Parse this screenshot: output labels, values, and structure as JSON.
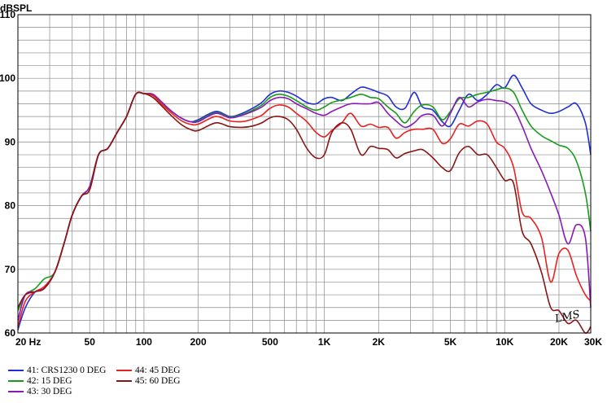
{
  "chart_data": {
    "type": "line",
    "ylabel": "dBSPL",
    "xscale": "log",
    "xlim": [
      20,
      30000
    ],
    "ylim": [
      60,
      110
    ],
    "grid": true,
    "x_tick_labels": [
      {
        "label": "20  Hz",
        "value": 20
      },
      {
        "label": "50",
        "value": 50
      },
      {
        "label": "100",
        "value": 100
      },
      {
        "label": "200",
        "value": 200
      },
      {
        "label": "500",
        "value": 500
      },
      {
        "label": "1K",
        "value": 1000
      },
      {
        "label": "2K",
        "value": 2000
      },
      {
        "label": "5K",
        "value": 5000
      },
      {
        "label": "10K",
        "value": 10000
      },
      {
        "label": "20K",
        "value": 20000
      },
      {
        "label": "30K",
        "value": 30000
      }
    ],
    "y_tick_labels": [
      {
        "label": "110",
        "value": 110
      },
      {
        "label": "100",
        "value": 100
      },
      {
        "label": "90",
        "value": 90
      },
      {
        "label": "80",
        "value": 80
      },
      {
        "label": "70",
        "value": 70
      },
      {
        "label": "60",
        "value": 60
      }
    ],
    "x": [
      20,
      22,
      25,
      28,
      32,
      36,
      40,
      45,
      50,
      56,
      63,
      71,
      80,
      90,
      100,
      112,
      125,
      140,
      160,
      180,
      200,
      250,
      300,
      350,
      400,
      450,
      500,
      560,
      630,
      700,
      800,
      900,
      1000,
      1100,
      1250,
      1400,
      1600,
      1800,
      2000,
      2250,
      2500,
      2800,
      3150,
      3500,
      4000,
      4500,
      5000,
      5600,
      6300,
      7100,
      8000,
      9000,
      10000,
      11200,
      12500,
      14000,
      16000,
      18000,
      20000,
      22400,
      25000,
      28000,
      30000
    ],
    "series": [
      {
        "name": "41: CRS1230 0 DEG",
        "color": "#1f2fd6",
        "values": [
          60.5,
          64,
          66.5,
          67,
          69.5,
          74,
          78.5,
          81.5,
          83,
          88,
          89,
          91.5,
          94,
          97.5,
          97.6,
          97.5,
          96.3,
          95,
          93.8,
          93.2,
          93.5,
          94.8,
          94,
          94.5,
          95.3,
          96.2,
          97.5,
          98,
          97.8,
          97.2,
          96.2,
          96,
          96.8,
          97,
          96.5,
          97.5,
          98.6,
          98.3,
          97.8,
          97.2,
          95.5,
          95.3,
          97.8,
          95.5,
          95,
          93.2,
          92.5,
          95,
          97.5,
          96.5,
          97.5,
          99,
          98.5,
          100.5,
          98.5,
          96,
          95,
          94.5,
          94.8,
          95.5,
          96,
          93,
          88
        ]
      },
      {
        "name": "42: 15 DEG",
        "color": "#169c1a",
        "values": [
          63.5,
          66,
          67,
          68.5,
          69.5,
          74,
          78.5,
          81.5,
          83,
          88,
          89,
          91.5,
          94,
          97.5,
          97.6,
          97.5,
          96.3,
          95,
          93.8,
          93.2,
          93.3,
          94.6,
          93.9,
          94.3,
          95,
          95.8,
          97,
          97.5,
          97.2,
          96.5,
          95.5,
          95,
          95.5,
          96.2,
          96.6,
          97,
          97.5,
          97,
          96.8,
          95.5,
          94.5,
          93,
          94.8,
          95.8,
          95.5,
          93.5,
          94.8,
          96.8,
          97,
          97.5,
          97.8,
          98.2,
          98.5,
          97.8,
          95,
          92.5,
          91,
          90.2,
          89.5,
          89,
          87,
          82,
          76
        ]
      },
      {
        "name": "43: 30 DEG",
        "color": "#8a1ab8",
        "values": [
          62,
          66,
          66.5,
          67,
          69.5,
          74,
          78.5,
          81.5,
          83,
          88,
          89,
          91.5,
          94,
          97.5,
          97.6,
          97.5,
          96.3,
          95,
          93.8,
          93.2,
          93.2,
          94.5,
          93.8,
          94.2,
          94.8,
          95.5,
          96.5,
          97,
          96.8,
          96,
          95.2,
          94.5,
          94.2,
          94.8,
          95.5,
          96,
          96,
          96,
          96.2,
          94.5,
          93.3,
          92.3,
          93,
          94.2,
          94.2,
          92.5,
          94.5,
          97,
          95.5,
          96.3,
          96.7,
          96.5,
          96.3,
          95.3,
          92.5,
          89,
          85.5,
          82,
          78.5,
          74,
          77,
          75,
          64
        ]
      },
      {
        "name": "44: 45 DEG",
        "color": "#e82020",
        "values": [
          61,
          65,
          66.5,
          67.3,
          69.5,
          74,
          78.5,
          81.5,
          82.5,
          88,
          89,
          91.5,
          94,
          97.5,
          97.6,
          97.3,
          96,
          94.7,
          93.4,
          92.8,
          92.8,
          94,
          93.3,
          93.2,
          93.6,
          94.2,
          95.3,
          95.8,
          95.5,
          94.5,
          93.2,
          91.5,
          90.8,
          91.8,
          93,
          94.5,
          92.5,
          92.8,
          92.3,
          92.3,
          90.6,
          91.5,
          92,
          92,
          92,
          89.8,
          90.5,
          92.8,
          92.5,
          93.3,
          92.8,
          90,
          89,
          86,
          79,
          78,
          75,
          68,
          72.5,
          73,
          69,
          66,
          65
        ]
      },
      {
        "name": "45: 60 DEG",
        "color": "#8b1515",
        "values": [
          64,
          66,
          66.5,
          67,
          69.5,
          74,
          78.5,
          81.5,
          82.5,
          88,
          89,
          91.5,
          94,
          97.5,
          97.6,
          97,
          95.7,
          94.3,
          92.8,
          92,
          91.8,
          93,
          92.4,
          92.3,
          92.5,
          93,
          93.8,
          94,
          93.5,
          92,
          89,
          87.5,
          88,
          91.5,
          93,
          92,
          88,
          89.3,
          89,
          88.8,
          87.5,
          88.2,
          88.6,
          88.8,
          87.5,
          86,
          85.5,
          88.3,
          89.3,
          88,
          88,
          86,
          84,
          83.5,
          76,
          74,
          69.5,
          64,
          63.5,
          61.5,
          62,
          60,
          61
        ]
      }
    ]
  },
  "watermark": "LMS",
  "colors": {
    "grid": "#8a8a8a",
    "axis": "#000000",
    "background": "#ffffff"
  }
}
